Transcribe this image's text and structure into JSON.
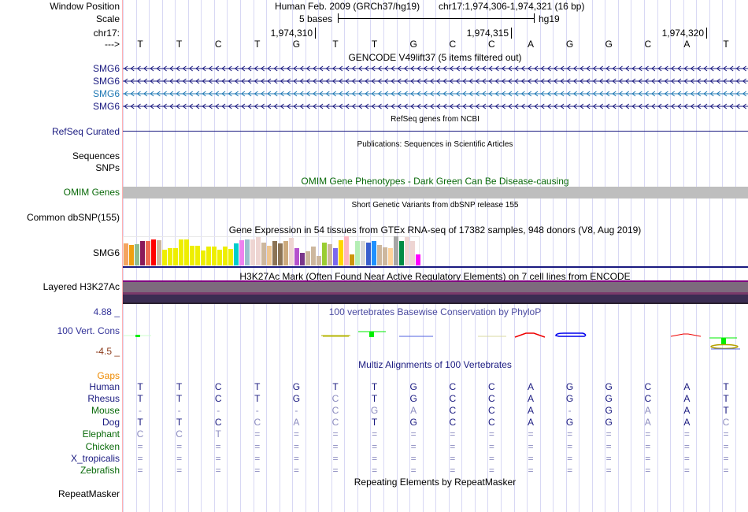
{
  "header": {
    "window_position_label": "Window Position",
    "assembly": "Human Feb. 2009 (GRCh37/hg19)",
    "position": "chr17:1,974,306-1,974,321 (16 bp)",
    "scale_label": "Scale",
    "scale_text": "5 bases",
    "scale_db": "hg19",
    "chrom_label": "chr17:",
    "strand_label": "--->",
    "ticks": [
      "1,974,310",
      "1,974,315",
      "1,974,320"
    ]
  },
  "sequence": [
    "T",
    "T",
    "C",
    "T",
    "G",
    "T",
    "T",
    "G",
    "C",
    "C",
    "A",
    "G",
    "G",
    "C",
    "A",
    "T"
  ],
  "gencode": {
    "title": "GENCODE V49lift37 (5 items filtered out)",
    "items": [
      {
        "label": "SMG6",
        "color": "#1a1a80"
      },
      {
        "label": "SMG6",
        "color": "#1a1a80"
      },
      {
        "label": "SMG6",
        "color": "#1f78b4"
      },
      {
        "label": "SMG6",
        "color": "#1a1a80"
      }
    ]
  },
  "refseq": {
    "title": "RefSeq genes from NCBI",
    "label": "RefSeq Curated"
  },
  "publications": {
    "title": "Publications: Sequences in Scientific Articles",
    "label1": "Sequences",
    "label2": "SNPs"
  },
  "omim": {
    "title": "OMIM Gene Phenotypes - Dark Green Can Be Disease-causing",
    "label": "OMIM Genes"
  },
  "dbsnp": {
    "title": "Short Genetic Variants from dbSNP release 155",
    "label": "Common dbSNP(155)"
  },
  "gtex": {
    "title": "Gene Expression in 54 tissues from GTEx RNA-seq of 17382 samples, 948 donors (V8, Aug 2019)",
    "label": "SMG6",
    "values": [
      28,
      26,
      27,
      31,
      31,
      33,
      32,
      20,
      22,
      22,
      33,
      33,
      25,
      25,
      19,
      24,
      24,
      20,
      24,
      21,
      28,
      32,
      33,
      33,
      36,
      29,
      25,
      31,
      28,
      31,
      35,
      22,
      16,
      18,
      24,
      12,
      29,
      27,
      22,
      32,
      37,
      14,
      31,
      31,
      29,
      31,
      26,
      23,
      22,
      37,
      31,
      36,
      31,
      14
    ],
    "colors": [
      "#f4a460",
      "#f0a010",
      "#8fbc8f",
      "#8b1a5a",
      "#ee6a50",
      "#ff0000",
      "#cdb79e",
      "#eeee00",
      "#eeee00",
      "#eeee00",
      "#eeee00",
      "#eeee00",
      "#eeee00",
      "#eeee00",
      "#eeee00",
      "#eeee00",
      "#eeee00",
      "#eeee00",
      "#eeee00",
      "#eeee00",
      "#00cdcd",
      "#ee82ee",
      "#9ac0cd",
      "#eed5d2",
      "#eed5d2",
      "#cdb79e",
      "#eec591",
      "#8b7355",
      "#8b7355",
      "#cdaa7d",
      "#eed5d2",
      "#b452cd",
      "#7a378b",
      "#cdb79e",
      "#cdb79e",
      "#cdb79e",
      "#9acd32",
      "#cdb79e",
      "#7b68ee",
      "#ffd700",
      "#ffb6c1",
      "#cd950c",
      "#b4eeb4",
      "#d9d9d9",
      "#3a5fcd",
      "#1e90ff",
      "#cdb79e",
      "#cdb79e",
      "#ffd39b",
      "#a6a6a6",
      "#008b45",
      "#eed5d2",
      "#eed5d2",
      "#ff00ff"
    ]
  },
  "h3k27ac": {
    "title": "H3K27Ac Mark (Often Found Near Active Regulatory Elements) on 7 cell lines from ENCODE",
    "label": "Layered H3K27Ac"
  },
  "phylop": {
    "title": "100 vertebrates Basewise Conservation by PhyloP",
    "label": "100 Vert. Cons",
    "max": "4.88 _",
    "min": "-4.5 _"
  },
  "multiz": {
    "title": "Multiz Alignments of 100 Vertebrates",
    "gaps_label": "Gaps",
    "species": [
      {
        "name": "Human",
        "color": "#1a1a80",
        "bases": "TTCTGTTGCCAGGCAT",
        "dim": "0000000000000000"
      },
      {
        "name": "Rhesus",
        "color": "#1a1a80",
        "bases": "TTCTGCTGCCAGGCAT",
        "dim": "0000010000000000"
      },
      {
        "name": "Mouse",
        "color": "#0a6a0a",
        "bases": "-----CGACCA-GAAT",
        "dim": "1111111100010100"
      },
      {
        "name": "Dog",
        "color": "#1a1a80",
        "bases": "TTCCACTGCCAGGAAC",
        "dim": "0001110000000101"
      },
      {
        "name": "Elephant",
        "color": "#0a6a0a",
        "bases": "CCT=============",
        "dim": "1111111111111111"
      },
      {
        "name": "Chicken",
        "color": "#0a6a0a",
        "bases": "================",
        "dim": "1111111111111111"
      },
      {
        "name": "X_tropicalis",
        "color": "#1a1a80",
        "bases": "================",
        "dim": "1111111111111111"
      },
      {
        "name": "Zebrafish",
        "color": "#0a6a0a",
        "bases": "================",
        "dim": "1111111111111111"
      }
    ]
  },
  "repeatmasker": {
    "title": "Repeating Elements by RepeatMasker",
    "label": "RepeatMasker"
  }
}
